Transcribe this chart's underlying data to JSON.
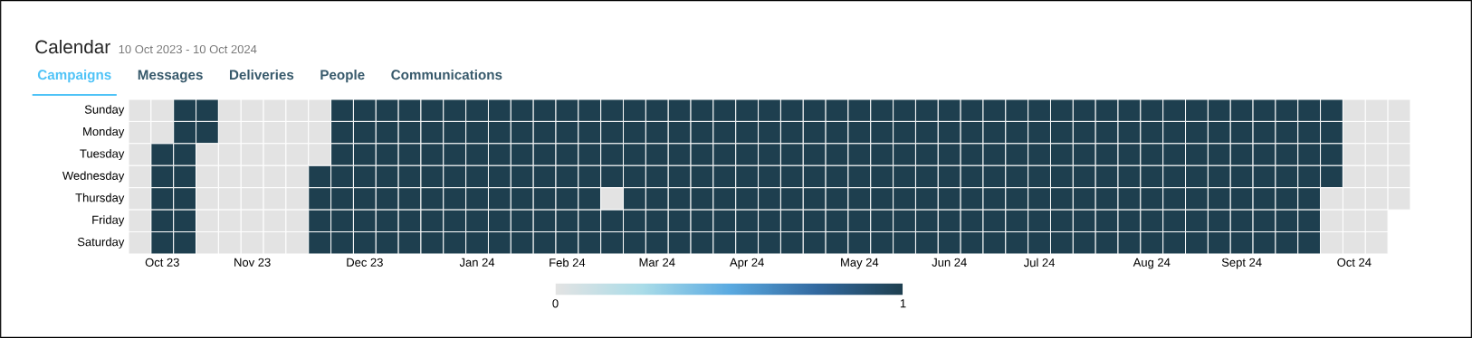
{
  "chart_data": {
    "type": "heatmap",
    "title": "Calendar",
    "subtitle": "10 Oct 2023 - 10 Oct 2024",
    "annotations": [
      "Campaigns",
      "Messages",
      "Deliveries",
      "People",
      "Communications"
    ],
    "categories": [
      null,
      "Oct 23",
      null,
      null,
      null,
      "Nov 23",
      null,
      null,
      null,
      null,
      "Dec 23",
      null,
      null,
      null,
      null,
      "Jan 24",
      null,
      null,
      null,
      "Feb 24",
      null,
      null,
      null,
      "Mar 24",
      null,
      null,
      null,
      "Apr 24",
      null,
      null,
      null,
      null,
      "May 24",
      null,
      null,
      null,
      "Jun 24",
      null,
      null,
      null,
      "Jul 24",
      null,
      null,
      null,
      null,
      "Aug 24",
      null,
      null,
      null,
      "Sept 24",
      null,
      null,
      null,
      null,
      "Oct 24",
      null,
      null
    ],
    "y_categories": [
      "Sunday",
      "Monday",
      "Tuesday",
      "Wednesday",
      "Thursday",
      "Friday",
      "Saturday"
    ],
    "cells": [
      [
        0,
        0,
        1,
        1,
        0,
        0,
        0,
        0,
        0,
        1,
        1,
        1,
        1,
        1,
        1,
        1,
        1,
        1,
        1,
        1,
        1,
        1,
        1,
        1,
        1,
        1,
        1,
        1,
        1,
        1,
        1,
        1,
        1,
        1,
        1,
        1,
        1,
        1,
        1,
        1,
        1,
        1,
        1,
        1,
        1,
        1,
        1,
        1,
        1,
        1,
        1,
        1,
        1,
        1,
        0,
        0,
        0
      ],
      [
        0,
        0,
        1,
        1,
        0,
        0,
        0,
        0,
        0,
        1,
        1,
        1,
        1,
        1,
        1,
        1,
        1,
        1,
        1,
        1,
        1,
        1,
        1,
        1,
        1,
        1,
        1,
        1,
        1,
        1,
        1,
        1,
        1,
        1,
        1,
        1,
        1,
        1,
        1,
        1,
        1,
        1,
        1,
        1,
        1,
        1,
        1,
        1,
        1,
        1,
        1,
        1,
        1,
        1,
        0,
        0,
        0
      ],
      [
        0,
        1,
        1,
        0,
        0,
        0,
        0,
        0,
        0,
        1,
        1,
        1,
        1,
        1,
        1,
        1,
        1,
        1,
        1,
        1,
        1,
        1,
        1,
        1,
        1,
        1,
        1,
        1,
        1,
        1,
        1,
        1,
        1,
        1,
        1,
        1,
        1,
        1,
        1,
        1,
        1,
        1,
        1,
        1,
        1,
        1,
        1,
        1,
        1,
        1,
        1,
        1,
        1,
        1,
        0,
        0,
        0
      ],
      [
        0,
        1,
        1,
        0,
        0,
        0,
        0,
        0,
        1,
        1,
        1,
        1,
        1,
        1,
        1,
        1,
        1,
        1,
        1,
        1,
        1,
        1,
        1,
        1,
        1,
        1,
        1,
        1,
        1,
        1,
        1,
        1,
        1,
        1,
        1,
        1,
        1,
        1,
        1,
        1,
        1,
        1,
        1,
        1,
        1,
        1,
        1,
        1,
        1,
        1,
        1,
        1,
        1,
        1,
        0,
        0,
        0
      ],
      [
        0,
        1,
        1,
        0,
        0,
        0,
        0,
        0,
        1,
        1,
        1,
        1,
        1,
        1,
        1,
        1,
        1,
        1,
        1,
        1,
        1,
        0,
        1,
        1,
        1,
        1,
        1,
        1,
        1,
        1,
        1,
        1,
        1,
        1,
        1,
        1,
        1,
        1,
        1,
        1,
        1,
        1,
        1,
        1,
        1,
        1,
        1,
        1,
        1,
        1,
        1,
        1,
        1,
        0,
        0,
        0,
        0
      ],
      [
        0,
        1,
        1,
        0,
        0,
        0,
        0,
        0,
        1,
        1,
        1,
        1,
        1,
        1,
        1,
        1,
        1,
        1,
        1,
        1,
        1,
        1,
        1,
        1,
        1,
        1,
        1,
        1,
        1,
        1,
        1,
        1,
        1,
        1,
        1,
        1,
        1,
        1,
        1,
        1,
        1,
        1,
        1,
        1,
        1,
        1,
        1,
        1,
        1,
        1,
        1,
        1,
        1,
        0,
        0,
        0,
        null
      ],
      [
        0,
        1,
        1,
        0,
        0,
        0,
        0,
        0,
        1,
        1,
        1,
        1,
        1,
        1,
        1,
        1,
        1,
        1,
        1,
        1,
        1,
        1,
        1,
        1,
        1,
        1,
        1,
        1,
        1,
        1,
        1,
        1,
        1,
        1,
        1,
        1,
        1,
        1,
        1,
        1,
        1,
        1,
        1,
        1,
        1,
        1,
        1,
        1,
        1,
        1,
        1,
        1,
        1,
        0,
        0,
        0,
        null
      ]
    ],
    "clim": [
      0,
      1
    ],
    "cticks": [
      0,
      1
    ]
  }
}
